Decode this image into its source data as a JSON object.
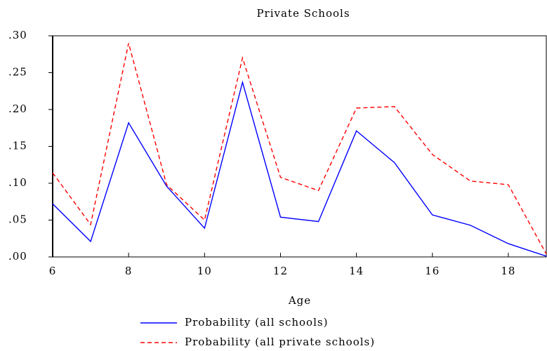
{
  "chart_data": {
    "type": "line",
    "title": "Private Schools",
    "x_label": "Age",
    "x": [
      6,
      7,
      8,
      9,
      10,
      11,
      12,
      13,
      14,
      15,
      16,
      17,
      18,
      19
    ],
    "series": [
      {
        "name": "Probability (all schools)",
        "color": "#0000ff",
        "linestyle": "solid",
        "values": [
          0.072,
          0.021,
          0.182,
          0.096,
          0.039,
          0.237,
          0.054,
          0.048,
          0.171,
          0.128,
          0.057,
          0.043,
          0.018,
          0.001
        ]
      },
      {
        "name": "Probability (all private schools)",
        "color": "#ff0000",
        "linestyle": "dashed",
        "values": [
          0.114,
          0.044,
          0.29,
          0.098,
          0.05,
          0.27,
          0.108,
          0.09,
          0.202,
          0.204,
          0.139,
          0.103,
          0.098,
          0.004
        ]
      }
    ],
    "xlim": [
      6,
      19
    ],
    "xticks": [
      6,
      8,
      10,
      12,
      14,
      16,
      18
    ],
    "ylim": [
      0,
      0.3
    ],
    "yticks": [
      {
        "value": 0,
        "label": ".00"
      },
      {
        "value": 0.05,
        "label": ".05"
      },
      {
        "value": 0.1,
        "label": ".10"
      },
      {
        "value": 0.15,
        "label": ".15"
      },
      {
        "value": 0.2,
        "label": ".20"
      },
      {
        "value": 0.25,
        "label": ".25"
      },
      {
        "value": 0.3,
        "label": ".30"
      }
    ],
    "legend": "bottom"
  }
}
